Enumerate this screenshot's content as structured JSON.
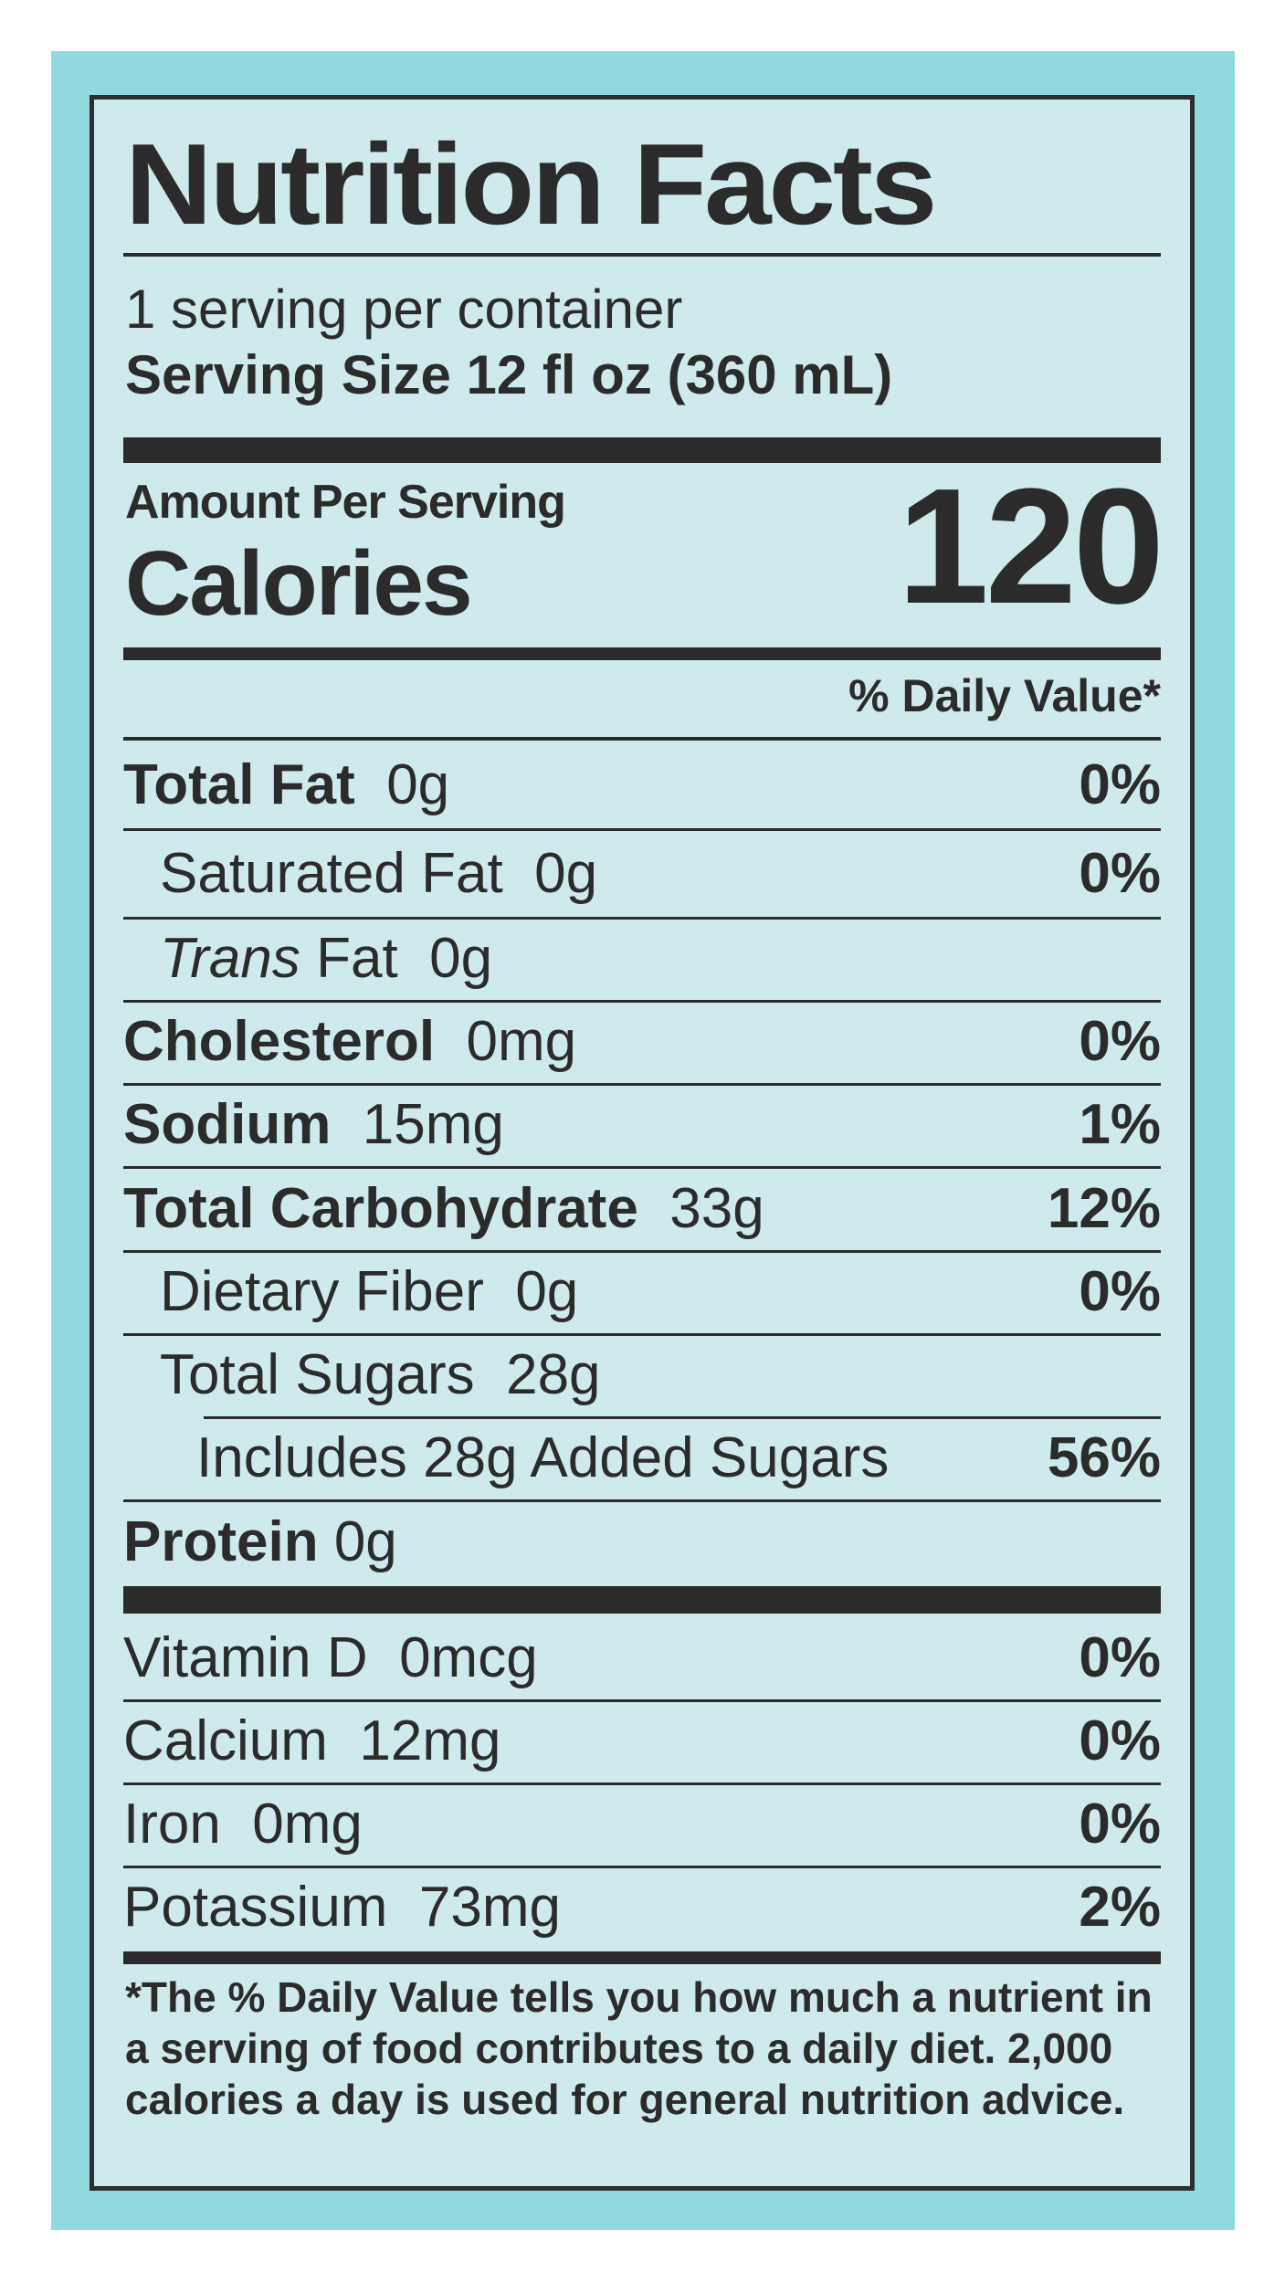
{
  "title": "Nutrition Facts",
  "servings_per_container": "1 serving per container",
  "serving_size_label": "Serving Size",
  "serving_size_value": "12 fl oz (360 mL)",
  "amount_per_serving": "Amount Per Serving",
  "calories_label": "Calories",
  "calories_value": "120",
  "daily_value_header": "% Daily Value*",
  "nutrients": [
    {
      "name": "Total Fat",
      "amount": "0g",
      "dv": "0%"
    },
    {
      "name": "Saturated Fat",
      "amount": "0g",
      "dv": "0%"
    },
    {
      "name_italic": "Trans",
      "name": "Fat",
      "amount": "0g",
      "dv": ""
    },
    {
      "name": "Cholesterol",
      "amount": "0mg",
      "dv": "0%"
    },
    {
      "name": "Sodium",
      "amount": "15mg",
      "dv": "1%"
    },
    {
      "name": "Total Carbohydrate",
      "amount": "33g",
      "dv": "12%"
    },
    {
      "name": "Dietary Fiber",
      "amount": "0g",
      "dv": "0%"
    },
    {
      "name": "Total Sugars",
      "amount": "28g",
      "dv": ""
    },
    {
      "name": "Includes 28g Added Sugars",
      "amount": "",
      "dv": "56%"
    },
    {
      "name": "Protein",
      "amount": "0g",
      "dv": ""
    }
  ],
  "vitamins": [
    {
      "name": "Vitamin D",
      "amount": "0mcg",
      "dv": "0%"
    },
    {
      "name": "Calcium",
      "amount": "12mg",
      "dv": "0%"
    },
    {
      "name": "Iron",
      "amount": "0mg",
      "dv": "0%"
    },
    {
      "name": "Potassium",
      "amount": "73mg",
      "dv": "2%"
    }
  ],
  "footnote": "*The % Daily Value tells you how much a nutrient in a serving of food contributes to a daily diet. 2,000 calories a day is used for general nutrition advice.",
  "colors": {
    "frame": "#8fd9df",
    "label_background": "#cfeaec",
    "ink": "#2b2b2b"
  }
}
